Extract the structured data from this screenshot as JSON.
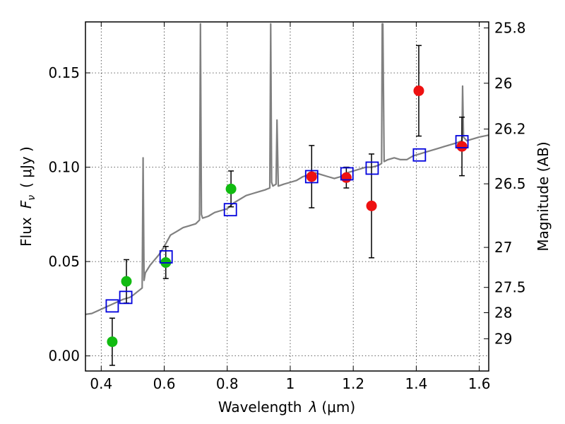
{
  "chart_data": {
    "type": "scatter",
    "xlabel_text": "Wavelength",
    "xlabel_symbol": "λ",
    "xlabel_unit": "(μm)",
    "ylabel_text": "Flux",
    "ylabel_symbol": "F",
    "ylabel_subscript": "ν",
    "ylabel_unit": "( μJy )",
    "y2label": "Magnitude (AB)",
    "xlim": [
      0.35,
      1.63
    ],
    "ylim": [
      -0.008,
      0.177
    ],
    "xticks": [
      0.4,
      0.6,
      0.8,
      1.0,
      1.2,
      1.4,
      1.6
    ],
    "xtick_labels": [
      "0.4",
      "0.6",
      "0.8",
      "1",
      "1.2",
      "1.4",
      "1.6"
    ],
    "yticks": [
      0.0,
      0.05,
      0.1,
      0.15
    ],
    "ytick_labels": [
      "0.00",
      "0.05",
      "0.10",
      "0.15"
    ],
    "y2ticks": [
      {
        "label": "25.8",
        "flux": 0.1738
      },
      {
        "label": "26",
        "flux": 0.1445
      },
      {
        "label": "26.2",
        "flux": 0.1202
      },
      {
        "label": "26.5",
        "flux": 0.0912
      },
      {
        "label": "27",
        "flux": 0.0575
      },
      {
        "label": "27.5",
        "flux": 0.0363
      },
      {
        "label": "28",
        "flux": 0.0229
      },
      {
        "label": "29",
        "flux": 0.0091
      }
    ],
    "grid": true,
    "colors": {
      "green": "#11bb11",
      "red": "#ee1111",
      "square": "#0000dd",
      "spectrum": "#808080",
      "errorbar": "#000000"
    },
    "series": [
      {
        "name": "green-points",
        "marker": "circle",
        "points": [
          {
            "x": 0.435,
            "y": 0.0075,
            "err": 0.0125
          },
          {
            "x": 0.48,
            "y": 0.0395,
            "err": 0.0115
          },
          {
            "x": 0.605,
            "y": 0.0495,
            "err": 0.0085
          },
          {
            "x": 0.812,
            "y": 0.0885,
            "err": 0.0095
          }
        ]
      },
      {
        "name": "red-points",
        "marker": "circle",
        "points": [
          {
            "x": 1.068,
            "y": 0.095,
            "err": 0.0165
          },
          {
            "x": 1.178,
            "y": 0.0945,
            "err": 0.0055
          },
          {
            "x": 1.258,
            "y": 0.0795,
            "err": 0.0275
          },
          {
            "x": 1.408,
            "y": 0.1405,
            "err": 0.024
          },
          {
            "x": 1.545,
            "y": 0.111,
            "err": 0.0155
          }
        ]
      },
      {
        "name": "model-squares",
        "marker": "square",
        "points": [
          {
            "x": 0.435,
            "y": 0.0265
          },
          {
            "x": 0.478,
            "y": 0.031
          },
          {
            "x": 0.606,
            "y": 0.0525
          },
          {
            "x": 0.81,
            "y": 0.0775
          },
          {
            "x": 1.068,
            "y": 0.095
          },
          {
            "x": 1.18,
            "y": 0.0965
          },
          {
            "x": 1.26,
            "y": 0.0995
          },
          {
            "x": 1.41,
            "y": 0.1065
          },
          {
            "x": 1.545,
            "y": 0.1135
          }
        ]
      }
    ],
    "spectrum": {
      "name": "model-spectrum",
      "x": [
        0.35,
        0.37,
        0.39,
        0.41,
        0.43,
        0.45,
        0.47,
        0.49,
        0.5,
        0.515,
        0.53,
        0.533,
        0.536,
        0.54,
        0.555,
        0.565,
        0.575,
        0.585,
        0.6,
        0.62,
        0.64,
        0.66,
        0.68,
        0.7,
        0.712,
        0.715,
        0.718,
        0.722,
        0.74,
        0.76,
        0.78,
        0.8,
        0.82,
        0.84,
        0.86,
        0.88,
        0.9,
        0.92,
        0.935,
        0.938,
        0.941,
        0.945,
        0.955,
        0.958,
        0.962,
        0.98,
        1.0,
        1.02,
        1.04,
        1.06,
        1.08,
        1.1,
        1.12,
        1.14,
        1.16,
        1.18,
        1.2,
        1.22,
        1.24,
        1.26,
        1.28,
        1.29,
        1.292,
        1.294,
        1.298,
        1.31,
        1.33,
        1.35,
        1.37,
        1.39,
        1.41,
        1.43,
        1.45,
        1.47,
        1.49,
        1.51,
        1.53,
        1.545,
        1.547,
        1.55,
        1.56,
        1.58,
        1.6,
        1.63
      ],
      "y": [
        0.022,
        0.0225,
        0.024,
        0.0255,
        0.027,
        0.0285,
        0.03,
        0.031,
        0.032,
        0.034,
        0.036,
        0.105,
        0.04,
        0.044,
        0.048,
        0.05,
        0.052,
        0.054,
        0.058,
        0.064,
        0.066,
        0.068,
        0.069,
        0.07,
        0.072,
        0.176,
        0.075,
        0.073,
        0.074,
        0.076,
        0.077,
        0.078,
        0.081,
        0.083,
        0.085,
        0.086,
        0.087,
        0.088,
        0.089,
        0.176,
        0.092,
        0.09,
        0.091,
        0.125,
        0.09,
        0.091,
        0.092,
        0.093,
        0.095,
        0.096,
        0.097,
        0.096,
        0.095,
        0.094,
        0.095,
        0.097,
        0.098,
        0.099,
        0.1,
        0.1,
        0.101,
        0.102,
        0.176,
        0.176,
        0.103,
        0.104,
        0.105,
        0.104,
        0.104,
        0.106,
        0.107,
        0.108,
        0.109,
        0.11,
        0.111,
        0.112,
        0.113,
        0.114,
        0.143,
        0.116,
        0.114,
        0.115,
        0.116,
        0.117
      ]
    }
  }
}
